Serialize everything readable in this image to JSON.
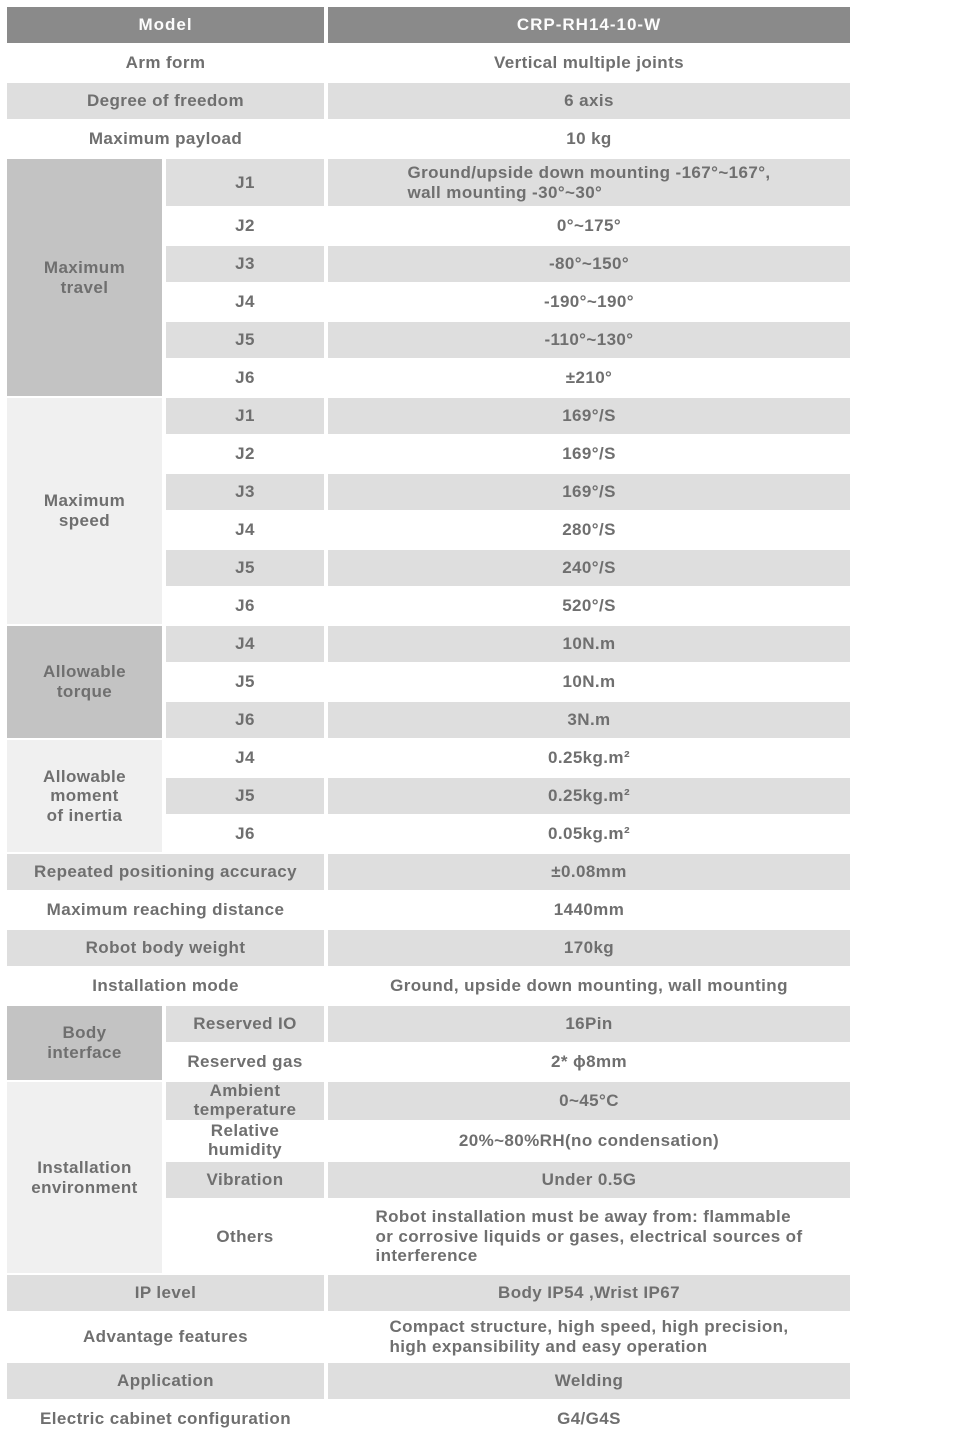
{
  "colors": {
    "header_bg": "#8a8a8a",
    "header_text": "#fcfcfc",
    "zebra_gray": "#dedede",
    "section_label_medium": "#c3c3c3",
    "section_label_light": "#f0f0f0",
    "text": "#6f6f6f"
  },
  "header": {
    "label": "Model",
    "value": "CRP-RH14-10-W"
  },
  "top_rows": [
    {
      "label": "Arm form",
      "value": "Vertical multiple joints"
    },
    {
      "label": "Degree of freedom",
      "value": "6 axis"
    },
    {
      "label": "Maximum payload",
      "value": "10 kg"
    }
  ],
  "sections": [
    {
      "label": "Maximum\ntravel",
      "rows": [
        {
          "sub": "J1",
          "value": "Ground/upside down mounting -167°~167°,\nwall mounting -30°~30°"
        },
        {
          "sub": "J2",
          "value": "0°~175°"
        },
        {
          "sub": "J3",
          "value": "-80°~150°"
        },
        {
          "sub": "J4",
          "value": "-190°~190°"
        },
        {
          "sub": "J5",
          "value": "-110°~130°"
        },
        {
          "sub": "J6",
          "value": "±210°"
        }
      ]
    },
    {
      "label": "Maximum\nspeed",
      "rows": [
        {
          "sub": "J1",
          "value": "169°/S"
        },
        {
          "sub": "J2",
          "value": "169°/S"
        },
        {
          "sub": "J3",
          "value": "169°/S"
        },
        {
          "sub": "J4",
          "value": "280°/S"
        },
        {
          "sub": "J5",
          "value": "240°/S"
        },
        {
          "sub": "J6",
          "value": "520°/S"
        }
      ]
    },
    {
      "label": "Allowable\ntorque",
      "rows": [
        {
          "sub": "J4",
          "value": "10N.m"
        },
        {
          "sub": "J5",
          "value": "10N.m"
        },
        {
          "sub": "J6",
          "value": "3N.m"
        }
      ]
    },
    {
      "label": "Allowable\nmoment\nof inertia",
      "rows": [
        {
          "sub": "J4",
          "value": "0.25kg.m²"
        },
        {
          "sub": "J5",
          "value": "0.25kg.m²"
        },
        {
          "sub": "J6",
          "value": "0.05kg.m²"
        }
      ]
    }
  ],
  "mid_rows": [
    {
      "label": "Repeated positioning accuracy",
      "value": "±0.08mm"
    },
    {
      "label": "Maximum reaching distance",
      "value": "1440mm"
    },
    {
      "label": "Robot body weight",
      "value": "170kg"
    },
    {
      "label": "Installation mode",
      "value": "Ground, upside down mounting, wall mounting"
    }
  ],
  "sections2": [
    {
      "label": "Body\ninterface",
      "rows": [
        {
          "sub": "Reserved IO",
          "value": "16Pin"
        },
        {
          "sub": "Reserved gas",
          "value": "2* ϕ8mm"
        }
      ]
    },
    {
      "label": "Installation\nenvironment",
      "rows": [
        {
          "sub": "Ambient\ntemperature",
          "value": "0~45°C"
        },
        {
          "sub": "Relative\nhumidity",
          "value": "20%~80%RH(no condensation)"
        },
        {
          "sub": "Vibration",
          "value": "Under 0.5G"
        },
        {
          "sub": "Others",
          "value": "Robot installation must be away from: flammable\nor corrosive liquids or gases, electrical sources of\ninterference"
        }
      ]
    }
  ],
  "bottom_rows": [
    {
      "label": "IP level",
      "value": "Body IP54 ,Wrist IP67"
    },
    {
      "label": "Advantage features",
      "value": "Compact structure, high speed, high precision,\nhigh expansibility and easy operation"
    },
    {
      "label": "Application",
      "value": "Welding"
    },
    {
      "label": "Electric cabinet configuration",
      "value": "G4/G4S"
    }
  ]
}
